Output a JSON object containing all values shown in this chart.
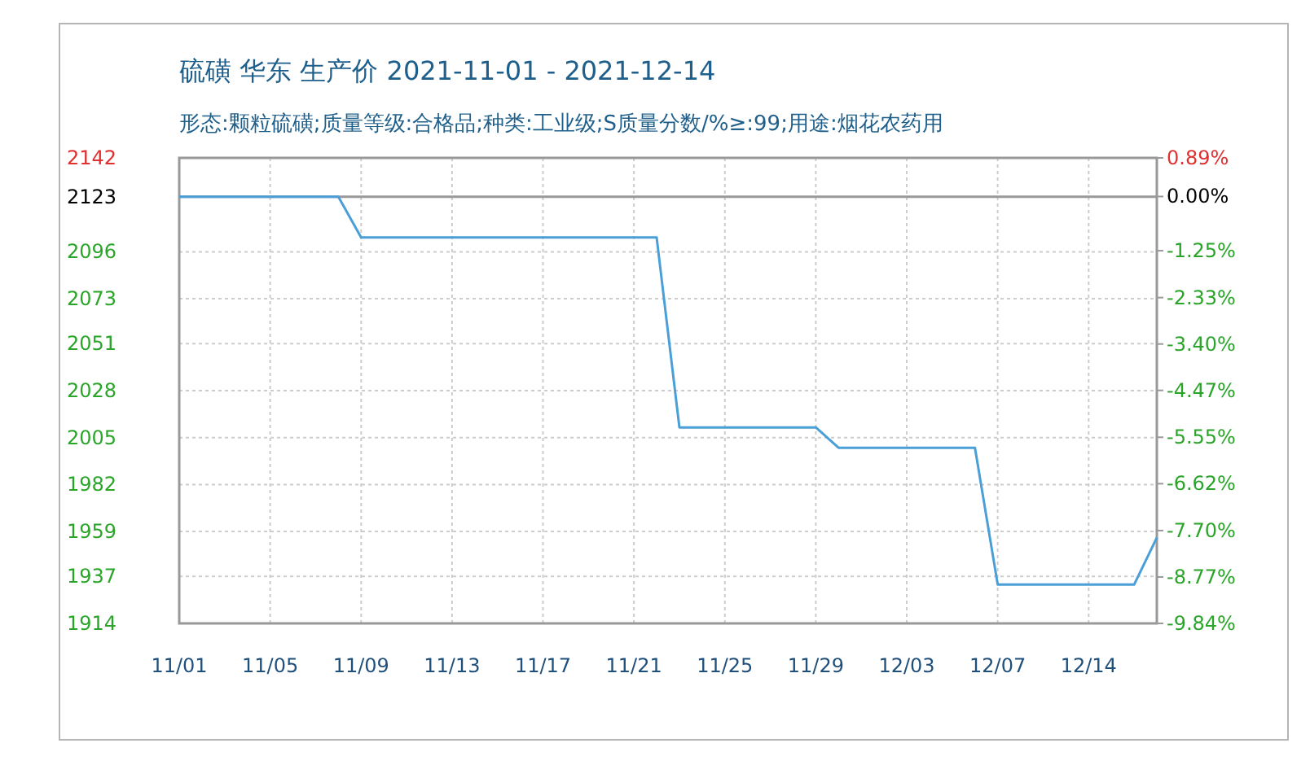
{
  "chart_data": {
    "type": "line",
    "title": "硫磺 华东 生产价 2021-11-01 - 2021-12-14",
    "subtitle": "形态:颗粒硫磺;质量等级:合格品;种类:工业级;S质量分数/%≥:99;用途:烟花农药用",
    "series": [
      {
        "color": "#4a9fd8",
        "x": [
          "2021-11-01",
          "2021-11-08",
          "2021-11-09",
          "2021-11-22",
          "2021-11-23",
          "2021-11-29",
          "2021-11-30",
          "2021-12-06",
          "2021-12-07",
          "2021-12-13",
          "2021-12-14"
        ],
        "values": [
          2123,
          2123,
          2103,
          2103,
          2010,
          2010,
          2000,
          2000,
          1933,
          1933,
          1956
        ]
      }
    ],
    "xlim": [
      "2021-11-01",
      "2021-12-14"
    ],
    "xticks": [
      {
        "value": "2021-11-01",
        "label": "11/01"
      },
      {
        "value": "2021-11-05",
        "label": "11/05"
      },
      {
        "value": "2021-11-09",
        "label": "11/09"
      },
      {
        "value": "2021-11-13",
        "label": "11/13"
      },
      {
        "value": "2021-11-17",
        "label": "11/17"
      },
      {
        "value": "2021-11-21",
        "label": "11/21"
      },
      {
        "value": "2021-11-25",
        "label": "11/25"
      },
      {
        "value": "2021-11-29",
        "label": "11/29"
      },
      {
        "value": "2021-12-03",
        "label": "12/03"
      },
      {
        "value": "2021-12-07",
        "label": "12/07"
      },
      {
        "value": "2021-12-11",
        "label": "12/14"
      }
    ],
    "ylim": [
      1914,
      2142
    ],
    "yticks": [
      2142,
      2123,
      2096,
      2073,
      2051,
      2028,
      2005,
      1982,
      1959,
      1937,
      1914
    ],
    "y2lim": [
      -9.84,
      0.89
    ],
    "y2ticks": [
      {
        "value": 0.89,
        "label": "0.89%"
      },
      {
        "value": 0,
        "label": "0.00%"
      },
      {
        "value": -1.25,
        "label": "-1.25%"
      },
      {
        "value": -2.33,
        "label": "-2.33%"
      },
      {
        "value": -3.4,
        "label": "-3.40%"
      },
      {
        "value": -4.47,
        "label": "-4.47%"
      },
      {
        "value": -5.55,
        "label": "-5.55%"
      },
      {
        "value": -6.62,
        "label": "-6.62%"
      },
      {
        "value": -7.7,
        "label": "-7.70%"
      },
      {
        "value": -8.77,
        "label": "-8.77%"
      },
      {
        "value": -9.84,
        "label": "-9.84%"
      }
    ],
    "ref_lines": [
      {
        "axis": "y",
        "value": 2123,
        "color": "#999999"
      }
    ],
    "grid": true
  }
}
